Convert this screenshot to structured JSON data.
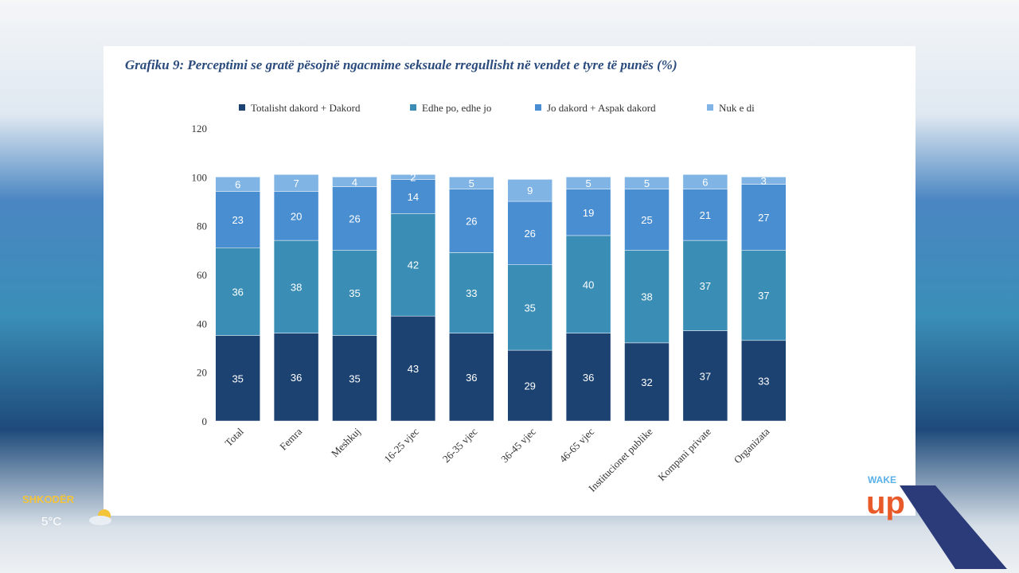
{
  "chart_data": {
    "type": "stacked_bar",
    "title": "Grafiku 9: Perceptimi se gratë pësojnë ngacmime seksuale rregullisht në vendet e tyre të punës (%)",
    "categories": [
      "Total",
      "Femra",
      "Meshkuj",
      "16-25 vjec",
      "26-35 vjec",
      "36-45 vjec",
      "46-65 vjec",
      "Institucionet publike",
      "Kompani private",
      "Organizata"
    ],
    "series": [
      {
        "name": "Totalisht dakord + Dakord",
        "color": "#1c4272",
        "values": [
          35,
          36,
          35,
          43,
          36,
          29,
          36,
          32,
          37,
          33
        ]
      },
      {
        "name": "Edhe po, edhe jo",
        "color": "#3a8db5",
        "values": [
          36,
          38,
          35,
          42,
          33,
          35,
          40,
          38,
          37,
          37
        ]
      },
      {
        "name": "Jo dakord + Aspak dakord",
        "color": "#4a8ed2",
        "values": [
          23,
          20,
          26,
          14,
          26,
          26,
          19,
          25,
          21,
          27
        ]
      },
      {
        "name": "Nuk e di",
        "color": "#7fb4e4",
        "values": [
          6,
          7,
          4,
          2,
          5,
          9,
          5,
          5,
          6,
          3
        ]
      }
    ],
    "ylim": [
      0,
      120
    ],
    "yticks": [
      0,
      20,
      40,
      60,
      80,
      100,
      120
    ],
    "legend": "top"
  },
  "overlay": {
    "city": "SHKODËR",
    "temperature": "5°C",
    "logo_top": "WAKE",
    "logo_bottom": "up"
  }
}
